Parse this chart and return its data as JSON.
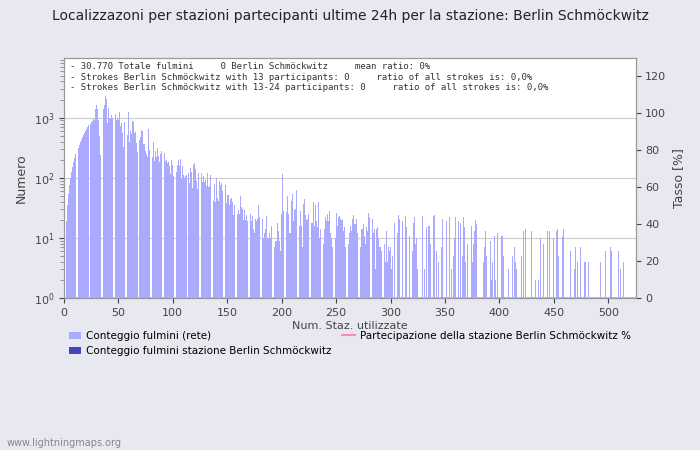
{
  "title": "Localizzazoni per stazioni partecipanti ultime 24h per la stazione: Berlin Schmöckwitz",
  "xlabel": "Num. Staz. utilizzate",
  "ylabel_left": "Numero",
  "ylabel_right": "Tasso [%]",
  "annotation_lines": [
    "30.770 Totale fulmini     0 Berlin Schmöckwitz     mean ratio: 0%",
    "Strokes Berlin Schmöckwitz with 13 participants: 0     ratio of all strokes is: 0,0%",
    "Strokes Berlin Schmöckwitz with 13-24 participants: 0     ratio of all strokes is: 0,0%"
  ],
  "legend_labels": [
    "Conteggio fulmini (rete)",
    "Conteggio fulmini stazione Berlin Schmöckwitz",
    "Partecipazione della stazione Berlin Schmöckwitz %"
  ],
  "watermark": "www.lightningmaps.org",
  "bar_color_light": "#aaaaff",
  "bar_color_dark": "#4444bb",
  "line_color": "#ff88bb",
  "background_color": "#e8e8f0",
  "plot_bg_color": "#f0f0ff",
  "grid_color": "#cccccc",
  "xlim": [
    0,
    525
  ],
  "ylim_right": [
    0,
    130
  ],
  "right_ticks": [
    0,
    20,
    40,
    60,
    80,
    100,
    120
  ],
  "fig_width": 7.0,
  "fig_height": 4.5,
  "dpi": 100
}
